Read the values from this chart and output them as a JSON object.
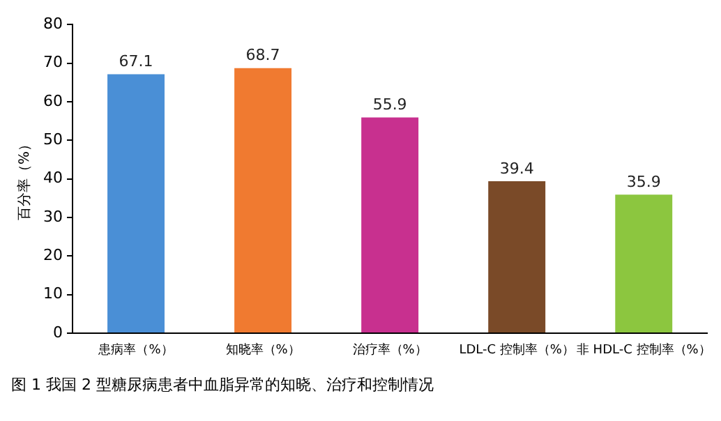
{
  "chart_data": {
    "type": "bar",
    "title": "图 1 我国 2 型糖尿病患者中血脂异常的知晓、治疗和控制情况",
    "ylabel": "百分率（%）",
    "categories": [
      "患病率（%）",
      "知晓率（%）",
      "治疗率（%）",
      "LDL-C 控制率（%）",
      "非 HDL-C 控制率（%）"
    ],
    "values": [
      67.1,
      68.7,
      55.9,
      39.4,
      35.9
    ],
    "colors": [
      "#4a8fd6",
      "#f07a30",
      "#c8308f",
      "#7a4a28",
      "#8cc63f"
    ],
    "ylim": [
      0,
      80
    ],
    "yticks": [
      0,
      10,
      20,
      30,
      40,
      50,
      60,
      70,
      80
    ],
    "grid": false,
    "legend": false,
    "data_labels": true
  }
}
